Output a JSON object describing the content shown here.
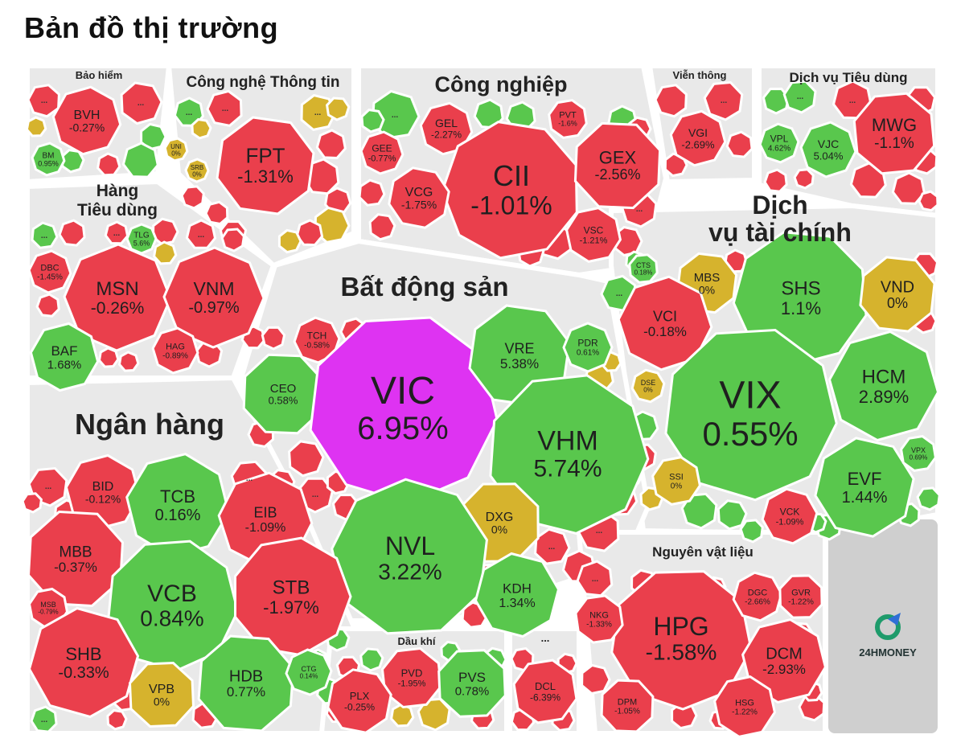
{
  "page": {
    "title": "Bản đồ thị trường"
  },
  "colors": {
    "red": "#ea3f4c",
    "green": "#59c74d",
    "yellow": "#d6b32d",
    "purple": "#de33f2",
    "bg": "#e9e9e9"
  },
  "logo": {
    "text": "24HMONEY"
  },
  "sectors": [
    {
      "id": "bao-hiem",
      "label": [
        "Bảo hiểm"
      ],
      "size": 13
    },
    {
      "id": "cong-nghe",
      "label": [
        "Công nghệ Thông tin"
      ],
      "size": 19
    },
    {
      "id": "cong-nghiep",
      "label": [
        "Công nghiệp"
      ],
      "size": 27
    },
    {
      "id": "vien-thong",
      "label": [
        "Viễn thông"
      ],
      "size": 13
    },
    {
      "id": "dich-vu-tieu-dung",
      "label": [
        "Dịch vụ Tiêu dùng"
      ],
      "size": 17
    },
    {
      "id": "hang-tieu-dung",
      "label": [
        "Hàng",
        "Tiêu dùng"
      ],
      "size": 21
    },
    {
      "id": "dich-vu-tai-chinh",
      "label": [
        "Dịch",
        "vụ tài chính"
      ],
      "size": 32
    },
    {
      "id": "bat-dong-san",
      "label": [
        "Bất động sản"
      ],
      "size": 33
    },
    {
      "id": "ngan-hang",
      "label": [
        "Ngân hàng"
      ],
      "size": 36
    },
    {
      "id": "dau-khi",
      "label": [
        "Dầu khí"
      ],
      "size": 13
    },
    {
      "id": "nguyen-vat-lieu",
      "label": [
        "Nguyên vật liệu"
      ],
      "size": 17
    },
    {
      "id": "khac",
      "label": [
        "..."
      ],
      "size": 13
    }
  ],
  "tickers": [
    {
      "sym": "BVH",
      "chg": "-0.27%",
      "c": "red"
    },
    {
      "sym": "BM",
      "chg": "0.95%",
      "c": "green"
    },
    {
      "sym": "FPT",
      "chg": "-1.31%",
      "c": "red"
    },
    {
      "sym": "UNI",
      "chg": "0%",
      "c": "yellow"
    },
    {
      "sym": "SRB",
      "chg": "0%",
      "c": "yellow"
    },
    {
      "sym": "GEL",
      "chg": "-2.27%",
      "c": "red"
    },
    {
      "sym": "PVT",
      "chg": "-1.6%",
      "c": "red"
    },
    {
      "sym": "GEE",
      "chg": "-0.77%",
      "c": "red"
    },
    {
      "sym": "CII",
      "chg": "-1.01%",
      "c": "red"
    },
    {
      "sym": "GEX",
      "chg": "-2.56%",
      "c": "red"
    },
    {
      "sym": "VCG",
      "chg": "-1.75%",
      "c": "red"
    },
    {
      "sym": "VSC",
      "chg": "-1.21%",
      "c": "red"
    },
    {
      "sym": "VGI",
      "chg": "-2.69%",
      "c": "red"
    },
    {
      "sym": "MWG",
      "chg": "-1.1%",
      "c": "red"
    },
    {
      "sym": "VPL",
      "chg": "4.62%",
      "c": "green"
    },
    {
      "sym": "VJC",
      "chg": "5.04%",
      "c": "green"
    },
    {
      "sym": "TLG",
      "chg": "5.6%",
      "c": "green"
    },
    {
      "sym": "DBC",
      "chg": "-1.45%",
      "c": "red"
    },
    {
      "sym": "MSN",
      "chg": "-0.26%",
      "c": "red"
    },
    {
      "sym": "VNM",
      "chg": "-0.97%",
      "c": "red"
    },
    {
      "sym": "BAF",
      "chg": "1.68%",
      "c": "green"
    },
    {
      "sym": "HAG",
      "chg": "-0.89%",
      "c": "red"
    },
    {
      "sym": "TCH",
      "chg": "-0.58%",
      "c": "red"
    },
    {
      "sym": "CEO",
      "chg": "0.58%",
      "c": "green"
    },
    {
      "sym": "VIC",
      "chg": "6.95%",
      "c": "purple"
    },
    {
      "sym": "VRE",
      "chg": "5.38%",
      "c": "green"
    },
    {
      "sym": "PDR",
      "chg": "0.61%",
      "c": "green"
    },
    {
      "sym": "VHM",
      "chg": "5.74%",
      "c": "green"
    },
    {
      "sym": "DXG",
      "chg": "0%",
      "c": "yellow"
    },
    {
      "sym": "NVL",
      "chg": "3.22%",
      "c": "green"
    },
    {
      "sym": "KDH",
      "chg": "1.34%",
      "c": "green"
    },
    {
      "sym": "CTS",
      "chg": "0.18%",
      "c": "green"
    },
    {
      "sym": "MBS",
      "chg": "0%",
      "c": "yellow"
    },
    {
      "sym": "SHS",
      "chg": "1.1%",
      "c": "green"
    },
    {
      "sym": "VND",
      "chg": "0%",
      "c": "yellow"
    },
    {
      "sym": "VCI",
      "chg": "-0.18%",
      "c": "red"
    },
    {
      "sym": "DSE",
      "chg": "0%",
      "c": "yellow"
    },
    {
      "sym": "VIX",
      "chg": "0.55%",
      "c": "green"
    },
    {
      "sym": "HCM",
      "chg": "2.89%",
      "c": "green"
    },
    {
      "sym": "SSI",
      "chg": "0%",
      "c": "yellow"
    },
    {
      "sym": "EVF",
      "chg": "1.44%",
      "c": "green"
    },
    {
      "sym": "VPX",
      "chg": "0.69%",
      "c": "green"
    },
    {
      "sym": "VCK",
      "chg": "-1.09%",
      "c": "red"
    },
    {
      "sym": "BID",
      "chg": "-0.12%",
      "c": "red"
    },
    {
      "sym": "TCB",
      "chg": "0.16%",
      "c": "green"
    },
    {
      "sym": "EIB",
      "chg": "-1.09%",
      "c": "red"
    },
    {
      "sym": "MBB",
      "chg": "-0.37%",
      "c": "red"
    },
    {
      "sym": "MSB",
      "chg": "-0.79%",
      "c": "red"
    },
    {
      "sym": "VCB",
      "chg": "0.84%",
      "c": "green"
    },
    {
      "sym": "STB",
      "chg": "-1.97%",
      "c": "red"
    },
    {
      "sym": "SHB",
      "chg": "-0.33%",
      "c": "red"
    },
    {
      "sym": "VPB",
      "chg": "0%",
      "c": "yellow"
    },
    {
      "sym": "HDB",
      "chg": "0.77%",
      "c": "green"
    },
    {
      "sym": "CTG",
      "chg": "0.14%",
      "c": "green"
    },
    {
      "sym": "PVD",
      "chg": "-1.95%",
      "c": "red"
    },
    {
      "sym": "PVS",
      "chg": "0.78%",
      "c": "green"
    },
    {
      "sym": "PLX",
      "chg": "-0.25%",
      "c": "red"
    },
    {
      "sym": "DCL",
      "chg": "-6.39%",
      "c": "red"
    },
    {
      "sym": "HPG",
      "chg": "-1.58%",
      "c": "red"
    },
    {
      "sym": "DGC",
      "chg": "-2.66%",
      "c": "red"
    },
    {
      "sym": "GVR",
      "chg": "-1.22%",
      "c": "red"
    },
    {
      "sym": "NKG",
      "chg": "-1.33%",
      "c": "red"
    },
    {
      "sym": "DCM",
      "chg": "-2.93%",
      "c": "red"
    },
    {
      "sym": "DPM",
      "chg": "-1.05%",
      "c": "red"
    },
    {
      "sym": "HSG",
      "chg": "-1.22%",
      "c": "red"
    }
  ],
  "more_label": "..."
}
